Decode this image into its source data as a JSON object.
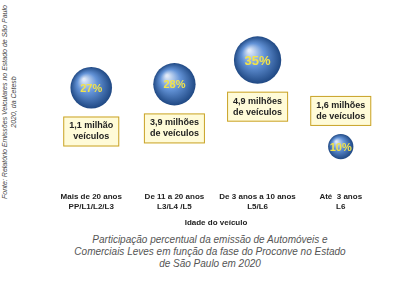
{
  "chart_data": {
    "type": "bubble",
    "categories": [
      "Mais de 20 anos",
      "De 11 a 20 anos",
      "De 3 anos a 10 anos",
      "Até  3 anos"
    ],
    "phases": [
      "PP/L1/L2/L3",
      "L3/L4 /L5",
      "L5/L6",
      "L6"
    ],
    "values": [
      27,
      28,
      35,
      10
    ],
    "value_labels": [
      "27%",
      "28%",
      "35%",
      "10%"
    ],
    "data_labels": true,
    "vehicles": [
      1.1,
      3.9,
      4.9,
      1.6
    ],
    "vehicle_labels": [
      "1,1 milhão veículos",
      "3,9 milhões de veículos",
      "4,9 milhões de veículos",
      "1,6 milhões de veículos"
    ],
    "x_label": "Idade do veículo",
    "source": "Fonte: Relatório Emissões Veiculares no Estado de São Paulo 2020, da Cetesb",
    "caption": "Participação percentual da emissão de Automóveis e Comerciais Leves em função da fase do Proconve no Estado de São Paulo em 2020",
    "color": "#2f6fc9",
    "tick_labels": "x",
    "grid": false,
    "legend": false
  }
}
